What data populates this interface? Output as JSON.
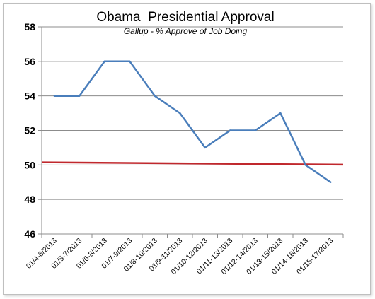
{
  "chart_data": {
    "type": "line",
    "title": "Obama  Presidential Approval",
    "subtitle": "Gallup - % Approve of Job Doing",
    "xlabel": "",
    "ylabel": "",
    "categories": [
      "01/4-6/2013",
      "01/5-7/2013",
      "01/6-8/2013",
      "01/7-9/2013",
      "01/8-10/2013",
      "01/9-11/2013",
      "01/10-12/2013",
      "01/11-13/2013",
      "01/12-14/2013",
      "01/13-15/2013",
      "01/14-16/2013",
      "01/15-17/2013"
    ],
    "series": [
      {
        "values": [
          54,
          54,
          56,
          56,
          54,
          53,
          51,
          52,
          52,
          53,
          50,
          49
        ],
        "color": "#4a7ebb"
      }
    ],
    "trendline": {
      "start": 50.15,
      "end": 50.02,
      "color": "#c0282d"
    },
    "ylim": [
      46,
      58
    ],
    "yticks": [
      46,
      48,
      50,
      52,
      54,
      56,
      58
    ],
    "grid": true,
    "legend": "none"
  }
}
